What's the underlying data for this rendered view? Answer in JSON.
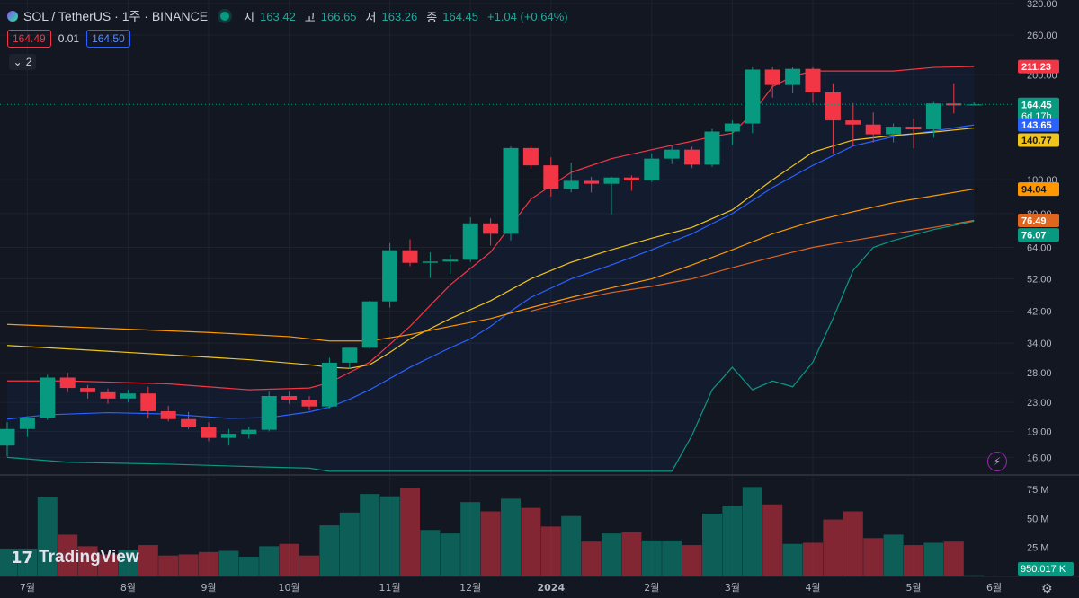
{
  "header": {
    "symbol": "SOL / TetherUS · 1주 · BINANCE",
    "open_label": "시",
    "open": "163.42",
    "high_label": "고",
    "high": "166.65",
    "low_label": "저",
    "low": "163.26",
    "close_label": "종",
    "close": "164.45",
    "change": "+1.04 (+0.64%)"
  },
  "trade": {
    "sell": "164.49",
    "spread": "0.01",
    "buy": "164.50"
  },
  "indicator_count": "2",
  "brand": "TradingView",
  "colors": {
    "up": "#089981",
    "down": "#f23645",
    "background": "#131722"
  },
  "chart_data": {
    "type": "candlestick",
    "scale": "log",
    "ylim": [
      14.5,
      320
    ],
    "y_ticks": [
      "320.00",
      "260.00",
      "200.00",
      "100.00",
      "80.00",
      "64.00",
      "52.00",
      "42.00",
      "34.00",
      "28.00",
      "23.00",
      "19.00",
      "16.00"
    ],
    "x_labels": [
      "7월",
      "8월",
      "9월",
      "10월",
      "11월",
      "12월",
      "2024",
      "2월",
      "3월",
      "4월",
      "5월",
      "6월"
    ],
    "x_label_index": [
      1,
      6,
      10,
      14,
      19,
      23,
      27,
      32,
      36,
      40,
      45,
      49
    ],
    "candles": [
      {
        "o": 17.3,
        "h": 20.2,
        "l": 16.1,
        "c": 19.3,
        "v": 24
      },
      {
        "o": 19.3,
        "h": 21.0,
        "l": 18.3,
        "c": 20.8,
        "v": 24
      },
      {
        "o": 20.8,
        "h": 27.6,
        "l": 20.5,
        "c": 27.1,
        "v": 68
      },
      {
        "o": 27.1,
        "h": 28.0,
        "l": 24.6,
        "c": 25.3,
        "v": 36
      },
      {
        "o": 25.3,
        "h": 25.8,
        "l": 23.6,
        "c": 24.6,
        "v": 26
      },
      {
        "o": 24.6,
        "h": 25.2,
        "l": 22.8,
        "c": 23.6,
        "v": 19
      },
      {
        "o": 23.6,
        "h": 25.0,
        "l": 23.0,
        "c": 24.4,
        "v": 23
      },
      {
        "o": 24.4,
        "h": 25.5,
        "l": 20.7,
        "c": 21.7,
        "v": 27
      },
      {
        "o": 21.7,
        "h": 22.5,
        "l": 20.3,
        "c": 20.6,
        "v": 18
      },
      {
        "o": 20.6,
        "h": 21.6,
        "l": 19.3,
        "c": 19.5,
        "v": 19
      },
      {
        "o": 19.5,
        "h": 20.2,
        "l": 17.8,
        "c": 18.2,
        "v": 21
      },
      {
        "o": 18.2,
        "h": 19.3,
        "l": 17.3,
        "c": 18.7,
        "v": 22
      },
      {
        "o": 18.7,
        "h": 19.6,
        "l": 18.1,
        "c": 19.2,
        "v": 17
      },
      {
        "o": 19.2,
        "h": 24.7,
        "l": 19.0,
        "c": 24.0,
        "v": 26
      },
      {
        "o": 24.0,
        "h": 24.7,
        "l": 22.8,
        "c": 23.4,
        "v": 28
      },
      {
        "o": 23.4,
        "h": 24.0,
        "l": 21.8,
        "c": 22.4,
        "v": 18
      },
      {
        "o": 22.4,
        "h": 30.9,
        "l": 22.1,
        "c": 29.9,
        "v": 44
      },
      {
        "o": 29.9,
        "h": 33.0,
        "l": 28.7,
        "c": 33.0,
        "v": 55
      },
      {
        "o": 33.0,
        "h": 45.0,
        "l": 32.8,
        "c": 44.8,
        "v": 71
      },
      {
        "o": 44.8,
        "h": 65.8,
        "l": 43.0,
        "c": 62.8,
        "v": 69
      },
      {
        "o": 62.8,
        "h": 67.5,
        "l": 56.5,
        "c": 57.8,
        "v": 76
      },
      {
        "o": 57.8,
        "h": 62.0,
        "l": 52.3,
        "c": 58.3,
        "v": 40
      },
      {
        "o": 58.3,
        "h": 61.0,
        "l": 53.8,
        "c": 59.0,
        "v": 37
      },
      {
        "o": 59.0,
        "h": 78.0,
        "l": 58.2,
        "c": 75.0,
        "v": 64
      },
      {
        "o": 75.0,
        "h": 77.5,
        "l": 64.8,
        "c": 70.0,
        "v": 56
      },
      {
        "o": 70.0,
        "h": 124.5,
        "l": 67.0,
        "c": 123.3,
        "v": 67
      },
      {
        "o": 123.3,
        "h": 126.0,
        "l": 107.5,
        "c": 110.0,
        "v": 59
      },
      {
        "o": 110.0,
        "h": 116.0,
        "l": 89.5,
        "c": 94.2,
        "v": 43
      },
      {
        "o": 94.2,
        "h": 112.0,
        "l": 92.0,
        "c": 99.3,
        "v": 52
      },
      {
        "o": 99.3,
        "h": 102.0,
        "l": 92.0,
        "c": 97.4,
        "v": 30
      },
      {
        "o": 97.4,
        "h": 102.0,
        "l": 79.5,
        "c": 101.5,
        "v": 37
      },
      {
        "o": 101.5,
        "h": 103.0,
        "l": 93.0,
        "c": 99.6,
        "v": 38
      },
      {
        "o": 99.6,
        "h": 119.0,
        "l": 98.6,
        "c": 115.0,
        "v": 31
      },
      {
        "o": 115.0,
        "h": 126.0,
        "l": 111.0,
        "c": 122.0,
        "v": 31
      },
      {
        "o": 122.0,
        "h": 124.5,
        "l": 108.0,
        "c": 110.5,
        "v": 27
      },
      {
        "o": 110.5,
        "h": 140.0,
        "l": 109.0,
        "c": 137.5,
        "v": 54
      },
      {
        "o": 137.5,
        "h": 148.0,
        "l": 126.0,
        "c": 145.0,
        "v": 61
      },
      {
        "o": 145.0,
        "h": 210.0,
        "l": 136.0,
        "c": 207.0,
        "v": 77
      },
      {
        "o": 207.0,
        "h": 210.0,
        "l": 172.0,
        "c": 187.0,
        "v": 62
      },
      {
        "o": 187.0,
        "h": 210.0,
        "l": 177.0,
        "c": 208.0,
        "v": 28
      },
      {
        "o": 208.0,
        "h": 210.0,
        "l": 166.0,
        "c": 178.0,
        "v": 29
      },
      {
        "o": 178.0,
        "h": 189.0,
        "l": 119.0,
        "c": 148.0,
        "v": 49
      },
      {
        "o": 148.0,
        "h": 166.0,
        "l": 125.0,
        "c": 144.0,
        "v": 56
      },
      {
        "o": 144.0,
        "h": 156.0,
        "l": 128.0,
        "c": 135.0,
        "v": 33
      },
      {
        "o": 135.0,
        "h": 145.0,
        "l": 128.0,
        "c": 142.0,
        "v": 36
      },
      {
        "o": 142.0,
        "h": 150.0,
        "l": 123.0,
        "c": 139.5,
        "v": 27
      },
      {
        "o": 139.5,
        "h": 167.0,
        "l": 132.0,
        "c": 165.5,
        "v": 29
      },
      {
        "o": 165.5,
        "h": 189.0,
        "l": 155.0,
        "c": 163.4,
        "v": 30
      },
      {
        "o": 163.4,
        "h": 166.65,
        "l": 163.26,
        "c": 164.45,
        "v": 1
      }
    ],
    "indicators": [
      {
        "name": "BB upper",
        "color": "#f23645",
        "points": [
          [
            0,
            26.5
          ],
          [
            3,
            26.5
          ],
          [
            8,
            26.0
          ],
          [
            12,
            25.0
          ],
          [
            15,
            25.3
          ],
          [
            16,
            26.2
          ],
          [
            18,
            30
          ],
          [
            20,
            38
          ],
          [
            22,
            50
          ],
          [
            24,
            62
          ],
          [
            26,
            88
          ],
          [
            28,
            105
          ],
          [
            30,
            115
          ],
          [
            32,
            122
          ],
          [
            34,
            129
          ],
          [
            35,
            133
          ],
          [
            36,
            136
          ],
          [
            37,
            155
          ],
          [
            38,
            185
          ],
          [
            39,
            198
          ],
          [
            40,
            205
          ],
          [
            42,
            205
          ],
          [
            44,
            205
          ],
          [
            46,
            210
          ],
          [
            48,
            211.23
          ]
        ]
      },
      {
        "name": "BB basis",
        "color": "#2962ff",
        "points": [
          [
            0,
            20.6
          ],
          [
            2,
            21.2
          ],
          [
            5,
            21.5
          ],
          [
            8,
            21.3
          ],
          [
            11,
            20.7
          ],
          [
            13,
            20.8
          ],
          [
            15,
            21.6
          ],
          [
            16,
            22.3
          ],
          [
            17,
            23.5
          ],
          [
            18,
            25
          ],
          [
            20,
            29
          ],
          [
            22,
            33
          ],
          [
            23,
            35
          ],
          [
            24,
            38
          ],
          [
            25,
            42
          ],
          [
            26,
            46
          ],
          [
            28,
            52
          ],
          [
            30,
            57
          ],
          [
            32,
            63
          ],
          [
            34,
            70
          ],
          [
            36,
            80
          ],
          [
            38,
            95
          ],
          [
            40,
            110
          ],
          [
            42,
            125
          ],
          [
            44,
            133
          ],
          [
            46,
            138
          ],
          [
            48,
            143.65
          ]
        ]
      },
      {
        "name": "BB lower",
        "color": "#089981",
        "points": [
          [
            0,
            16.0
          ],
          [
            3,
            15.5
          ],
          [
            8,
            15.3
          ],
          [
            13,
            15.0
          ],
          [
            15,
            14.9
          ],
          [
            16,
            14.6
          ],
          [
            33,
            14.6
          ],
          [
            34,
            18.5
          ],
          [
            35,
            25
          ],
          [
            36,
            29
          ],
          [
            37,
            25
          ],
          [
            38,
            26.5
          ],
          [
            39,
            25.5
          ],
          [
            40,
            30
          ],
          [
            41,
            40
          ],
          [
            42,
            55
          ],
          [
            43,
            64
          ],
          [
            44,
            67
          ],
          [
            46,
            72
          ],
          [
            48,
            76.07
          ]
        ]
      },
      {
        "name": "MA yellow",
        "color": "#f0c419",
        "points": [
          [
            0,
            33.5
          ],
          [
            4,
            32.5
          ],
          [
            8,
            31.5
          ],
          [
            12,
            30.5
          ],
          [
            15,
            29.5
          ],
          [
            16,
            29.0
          ],
          [
            17,
            28.8
          ],
          [
            18,
            29.5
          ],
          [
            19,
            32
          ],
          [
            20,
            35
          ],
          [
            22,
            40
          ],
          [
            24,
            45
          ],
          [
            26,
            52
          ],
          [
            28,
            58
          ],
          [
            30,
            63
          ],
          [
            32,
            68
          ],
          [
            34,
            73
          ],
          [
            36,
            82
          ],
          [
            38,
            100
          ],
          [
            40,
            120
          ],
          [
            42,
            130
          ],
          [
            44,
            134
          ],
          [
            46,
            137
          ],
          [
            48,
            140.77
          ]
        ]
      },
      {
        "name": "MA orange",
        "color": "#ff9800",
        "points": [
          [
            0,
            38.5
          ],
          [
            5,
            37.5
          ],
          [
            10,
            36.5
          ],
          [
            14,
            35.5
          ],
          [
            16,
            34.5
          ],
          [
            18,
            34.5
          ],
          [
            20,
            36
          ],
          [
            22,
            38
          ],
          [
            24,
            40
          ],
          [
            26,
            43
          ],
          [
            28,
            46
          ],
          [
            30,
            49
          ],
          [
            32,
            52
          ],
          [
            34,
            57
          ],
          [
            36,
            63
          ],
          [
            38,
            70
          ],
          [
            40,
            76
          ],
          [
            42,
            81
          ],
          [
            44,
            86
          ],
          [
            46,
            90
          ],
          [
            48,
            94.04
          ]
        ]
      },
      {
        "name": "MA long",
        "color": "#e0651e",
        "points": [
          [
            26,
            42
          ],
          [
            28,
            45
          ],
          [
            30,
            47.5
          ],
          [
            32,
            49.5
          ],
          [
            34,
            52
          ],
          [
            36,
            56
          ],
          [
            38,
            60
          ],
          [
            40,
            64
          ],
          [
            42,
            67
          ],
          [
            44,
            70
          ],
          [
            46,
            73
          ],
          [
            48,
            76.49
          ]
        ]
      }
    ],
    "price_tags": [
      {
        "value": "211.23",
        "price": 211.23,
        "bg": "#f23645",
        "fg": "#ffffff"
      },
      {
        "value": "164.45",
        "price": 164.45,
        "bg": "#089981",
        "fg": "#ffffff",
        "extra": "6d 17h"
      },
      {
        "value": "143.65",
        "price": 143.65,
        "bg": "#2962ff",
        "fg": "#ffffff"
      },
      {
        "value": "140.77",
        "price": 130.0,
        "bg": "#f0c419",
        "fg": "#131722"
      },
      {
        "value": "94.04",
        "price": 94.04,
        "bg": "#ff9800",
        "fg": "#131722"
      },
      {
        "value": "76.49",
        "price": 76.49,
        "bg": "#e0651e",
        "fg": "#ffffff"
      },
      {
        "value": "76.07",
        "price": 69.5,
        "bg": "#089981",
        "fg": "#ffffff"
      }
    ],
    "volume_ticks": [
      "75 M",
      "50 M",
      "25 M"
    ],
    "volume_tick_values": [
      75,
      50,
      25
    ],
    "volume_max": 85,
    "volume_last": "950.017 K"
  }
}
